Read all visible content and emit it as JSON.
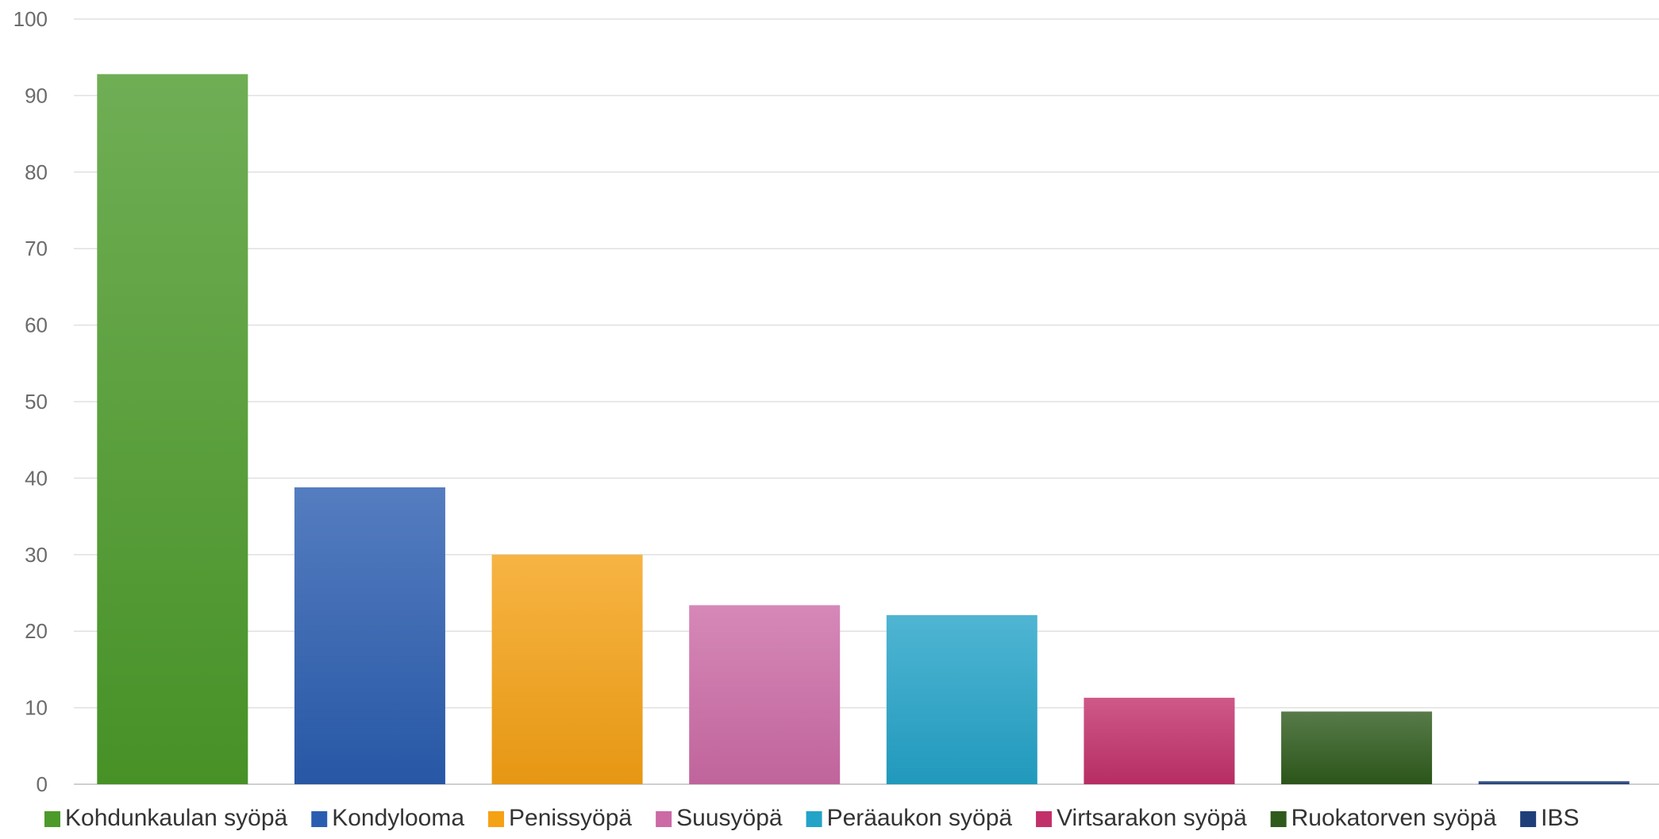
{
  "chart_data": {
    "type": "bar",
    "title": "",
    "xlabel": "",
    "ylabel": "",
    "ylim": [
      0,
      100
    ],
    "yticks": [
      0,
      10,
      20,
      30,
      40,
      50,
      60,
      70,
      80,
      90,
      100
    ],
    "grid": true,
    "legend_position": "bottom",
    "series": [
      {
        "name": "Kohdunkaulan syöpä",
        "value": 92.8,
        "color": "#4c9a2a"
      },
      {
        "name": "Kondylooma",
        "value": 38.8,
        "color": "#2a5db0"
      },
      {
        "name": "Penissyöpä",
        "value": 30.0,
        "color": "#f5a114"
      },
      {
        "name": "Suusyöpä",
        "value": 23.4,
        "color": "#cc6aa6"
      },
      {
        "name": "Peräaukon syöpä",
        "value": 22.1,
        "color": "#23a3c8"
      },
      {
        "name": "Virtsarakon syöpä",
        "value": 11.3,
        "color": "#c2306a"
      },
      {
        "name": "Ruokatorven syöpä",
        "value": 9.5,
        "color": "#2e5a1c"
      },
      {
        "name": "IBS",
        "value": 0.4,
        "color": "#1f3f7a"
      }
    ]
  }
}
